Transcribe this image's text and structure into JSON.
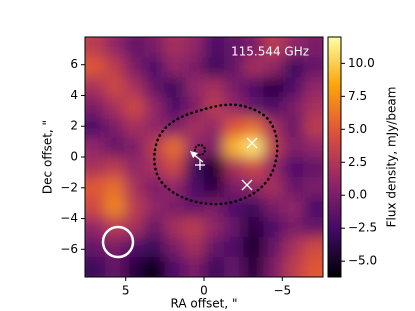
{
  "chart_data": {
    "type": "heatmap",
    "title": "115.544 GHz",
    "xlabel": "RA offset, \"",
    "ylabel": "Dec offset, \"",
    "colorbar_label": "Flux density, mJy/beam",
    "xlim": [
      7.6,
      -7.6
    ],
    "ylim": [
      -7.8,
      7.8
    ],
    "xticks": [
      {
        "value": 5,
        "label": "5"
      },
      0,
      {
        "value": -5,
        "label": "−5"
      }
    ],
    "yticks": [
      {
        "value": -6,
        "label": "−6"
      },
      {
        "value": -4,
        "label": "−4"
      },
      {
        "value": -2,
        "label": "−2"
      },
      0,
      2,
      4,
      6
    ],
    "clim": [
      -6.2,
      12
    ],
    "cticks": [
      {
        "value": -5,
        "label": "−5.0"
      },
      {
        "value": -2.5,
        "label": "−2.5"
      },
      {
        "value": 0,
        "label": "0.0"
      },
      {
        "value": 2.5,
        "label": "2.5"
      },
      {
        "value": 5,
        "label": "5.0"
      },
      {
        "value": 7.5,
        "label": "7.5"
      },
      {
        "value": 10,
        "label": "10.0"
      }
    ],
    "colormap": [
      "#000004",
      "#420a68",
      "#932667",
      "#dd513a",
      "#fca50a",
      "#fcffa4"
    ],
    "z": [
      [
        3,
        1,
        -1,
        0,
        2,
        1,
        -2,
        -1,
        0,
        3,
        1,
        0
      ],
      [
        5,
        3,
        0,
        -2,
        1,
        0,
        -3,
        -1,
        2,
        1,
        -3,
        -1
      ],
      [
        2,
        4,
        2,
        -1,
        -3,
        1,
        2,
        0,
        -2,
        -4,
        -2,
        1
      ],
      [
        0,
        2,
        4,
        1,
        -2,
        0,
        3,
        1,
        -1,
        -2,
        0,
        2
      ],
      [
        -2,
        0,
        2,
        1,
        0,
        2,
        1,
        5,
        6,
        2,
        -1,
        3
      ],
      [
        1,
        -1,
        0,
        3,
        6,
        1,
        0,
        9,
        11,
        3,
        0,
        1
      ],
      [
        2,
        3,
        1,
        2,
        4,
        -3,
        -5,
        2,
        4,
        1,
        -2,
        -1
      ],
      [
        5,
        6,
        2,
        0,
        1,
        -2,
        -4,
        0,
        1,
        2,
        -1,
        0
      ],
      [
        4,
        7,
        3,
        1,
        0,
        -1,
        0,
        -2,
        -3,
        0,
        1,
        -2
      ],
      [
        1,
        3,
        2,
        -1,
        2,
        3,
        1,
        -1,
        -4,
        -2,
        0,
        -1
      ],
      [
        -1,
        0,
        -2,
        -3,
        0,
        2,
        -1,
        -2,
        -5,
        -1,
        2,
        4
      ],
      [
        -3,
        -1,
        -4,
        -6,
        -2,
        0,
        -3,
        -1,
        -4,
        0,
        3,
        5
      ]
    ]
  }
}
